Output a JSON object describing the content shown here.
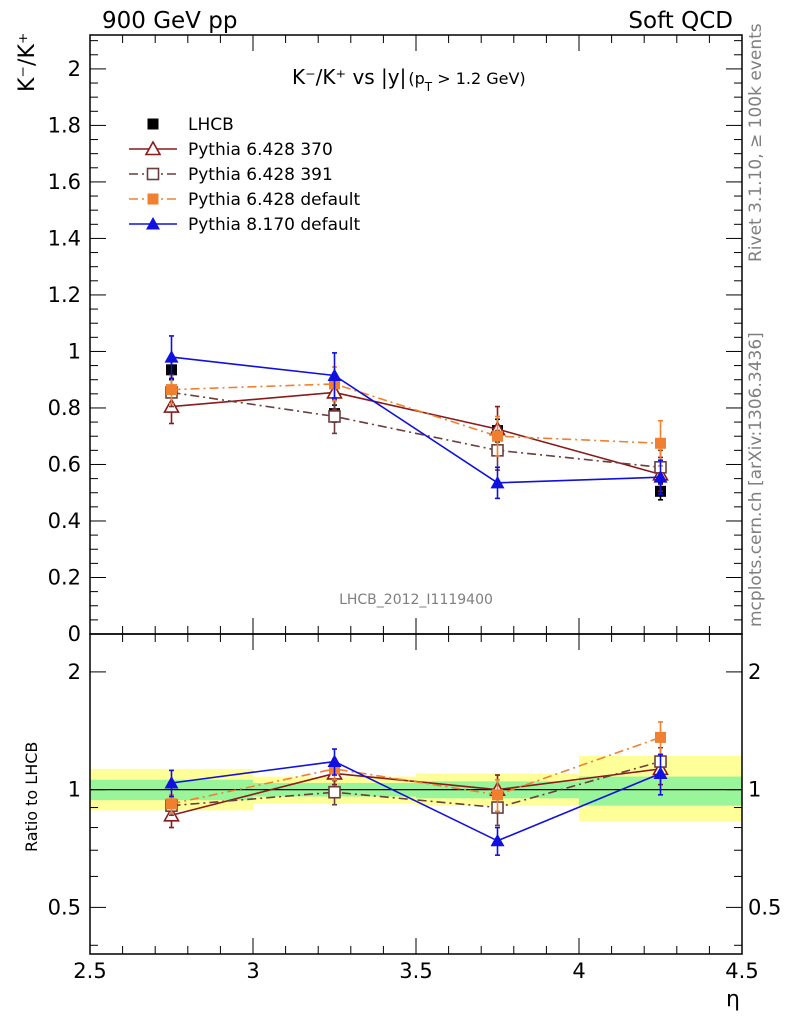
{
  "header": {
    "left": "900 GeV pp",
    "right": "Soft QCD"
  },
  "side_texts": {
    "rivet": "Rivet 3.1.10, ≥ 100k events",
    "mcplots": "mcplots.cern.ch [arXiv:1306.3436]"
  },
  "chart_data": [
    {
      "type": "scatter",
      "title_main": "K⁻/K⁺ vs |y|",
      "title_sub": "(p",
      "title_sub_index": "T",
      "title_sub_tail": " > 1.2 GeV)",
      "ylabel_text": "K⁻/K⁺",
      "analysis_label": "LHCB_2012_I1119400",
      "xlim": [
        2.5,
        4.5
      ],
      "ylim": [
        0,
        2.12
      ],
      "y_ticks": [
        "0",
        "0.2",
        "0.4",
        "0.6",
        "0.8",
        "1",
        "1.2",
        "1.4",
        "1.6",
        "1.8",
        "2"
      ],
      "legend_placement": "top-left",
      "series": [
        {
          "name": "LHCB",
          "color": "#000000",
          "marker": "filled-square",
          "line": "none",
          "x": [
            2.75,
            3.25,
            3.75,
            4.25
          ],
          "y": [
            0.935,
            0.78,
            0.72,
            0.505
          ],
          "err": [
            0.035,
            0.03,
            0.04,
            0.03
          ]
        },
        {
          "name": "Pythia 6.428 370",
          "color": "#8b1a1a",
          "marker": "open-triangle",
          "line": "solid",
          "x": [
            2.75,
            3.25,
            3.75,
            4.25
          ],
          "y": [
            0.805,
            0.855,
            0.725,
            0.565
          ],
          "err": [
            0.06,
            0.06,
            0.08,
            0.06
          ]
        },
        {
          "name": "Pythia 6.428 391",
          "color": "#6b3d3d",
          "marker": "open-square",
          "line": "dashdot",
          "x": [
            2.75,
            3.25,
            3.75,
            4.25
          ],
          "y": [
            0.855,
            0.77,
            0.65,
            0.59
          ],
          "err": [
            0.05,
            0.06,
            0.07,
            0.06
          ]
        },
        {
          "name": "Pythia 6.428 default",
          "color": "#f08030",
          "marker": "filled-square",
          "line": "dashdot",
          "x": [
            2.75,
            3.25,
            3.75,
            4.25
          ],
          "y": [
            0.865,
            0.885,
            0.7,
            0.675
          ],
          "err": [
            0.05,
            0.06,
            0.07,
            0.08
          ]
        },
        {
          "name": "Pythia 8.170 default",
          "color": "#1010e0",
          "marker": "filled-triangle",
          "line": "solid",
          "x": [
            2.75,
            3.25,
            3.75,
            4.25
          ],
          "y": [
            0.98,
            0.915,
            0.535,
            0.555
          ],
          "err": [
            0.075,
            0.08,
            0.055,
            0.06
          ]
        }
      ]
    },
    {
      "type": "scatter",
      "ylabel": "Ratio to LHCB",
      "xlabel": "η",
      "xlim": [
        2.5,
        4.5
      ],
      "y_scale": "log",
      "ylim": [
        0.38,
        2.5
      ],
      "x_ticks": [
        "2.5",
        "3",
        "3.5",
        "4",
        "4.5"
      ],
      "y_ticks": [
        "0.5",
        "1",
        "2"
      ],
      "bands": [
        {
          "x": [
            2.5,
            3.0
          ],
          "inner": [
            0.94,
            1.06
          ],
          "outer": [
            0.885,
            1.13
          ]
        },
        {
          "x": [
            3.0,
            3.5
          ],
          "inner": [
            0.96,
            1.04
          ],
          "outer": [
            0.92,
            1.08
          ]
        },
        {
          "x": [
            3.5,
            4.0
          ],
          "inner": [
            0.95,
            1.05
          ],
          "outer": [
            0.91,
            1.1
          ]
        },
        {
          "x": [
            4.0,
            4.5
          ],
          "inner": [
            0.91,
            1.08
          ],
          "outer": [
            0.83,
            1.22
          ]
        }
      ],
      "band_colors": {
        "inner": "#99f599",
        "outer": "#ffff99"
      },
      "series": [
        {
          "name": "Pythia 6.428 370",
          "color": "#8b1a1a",
          "marker": "open-triangle",
          "line": "solid",
          "x": [
            2.75,
            3.25,
            3.75,
            4.25
          ],
          "y": [
            0.86,
            1.1,
            1.0,
            1.13
          ],
          "err": [
            0.06,
            0.07,
            0.09,
            0.1
          ]
        },
        {
          "name": "Pythia 6.428 391",
          "color": "#6b3d3d",
          "marker": "open-square",
          "line": "dashdot",
          "x": [
            2.75,
            3.25,
            3.75,
            4.25
          ],
          "y": [
            0.91,
            0.985,
            0.9,
            1.18
          ],
          "err": [
            0.05,
            0.07,
            0.09,
            0.1
          ]
        },
        {
          "name": "Pythia 6.428 default",
          "color": "#f08030",
          "marker": "filled-square",
          "line": "dashdot",
          "x": [
            2.75,
            3.25,
            3.75,
            4.25
          ],
          "y": [
            0.92,
            1.13,
            0.97,
            1.36
          ],
          "err": [
            0.05,
            0.07,
            0.09,
            0.13
          ]
        },
        {
          "name": "Pythia 8.170 default",
          "color": "#1010e0",
          "marker": "filled-triangle",
          "line": "solid",
          "x": [
            2.75,
            3.25,
            3.75,
            4.25
          ],
          "y": [
            1.04,
            1.18,
            0.74,
            1.1
          ],
          "err": [
            0.08,
            0.09,
            0.06,
            0.13
          ]
        }
      ]
    }
  ]
}
